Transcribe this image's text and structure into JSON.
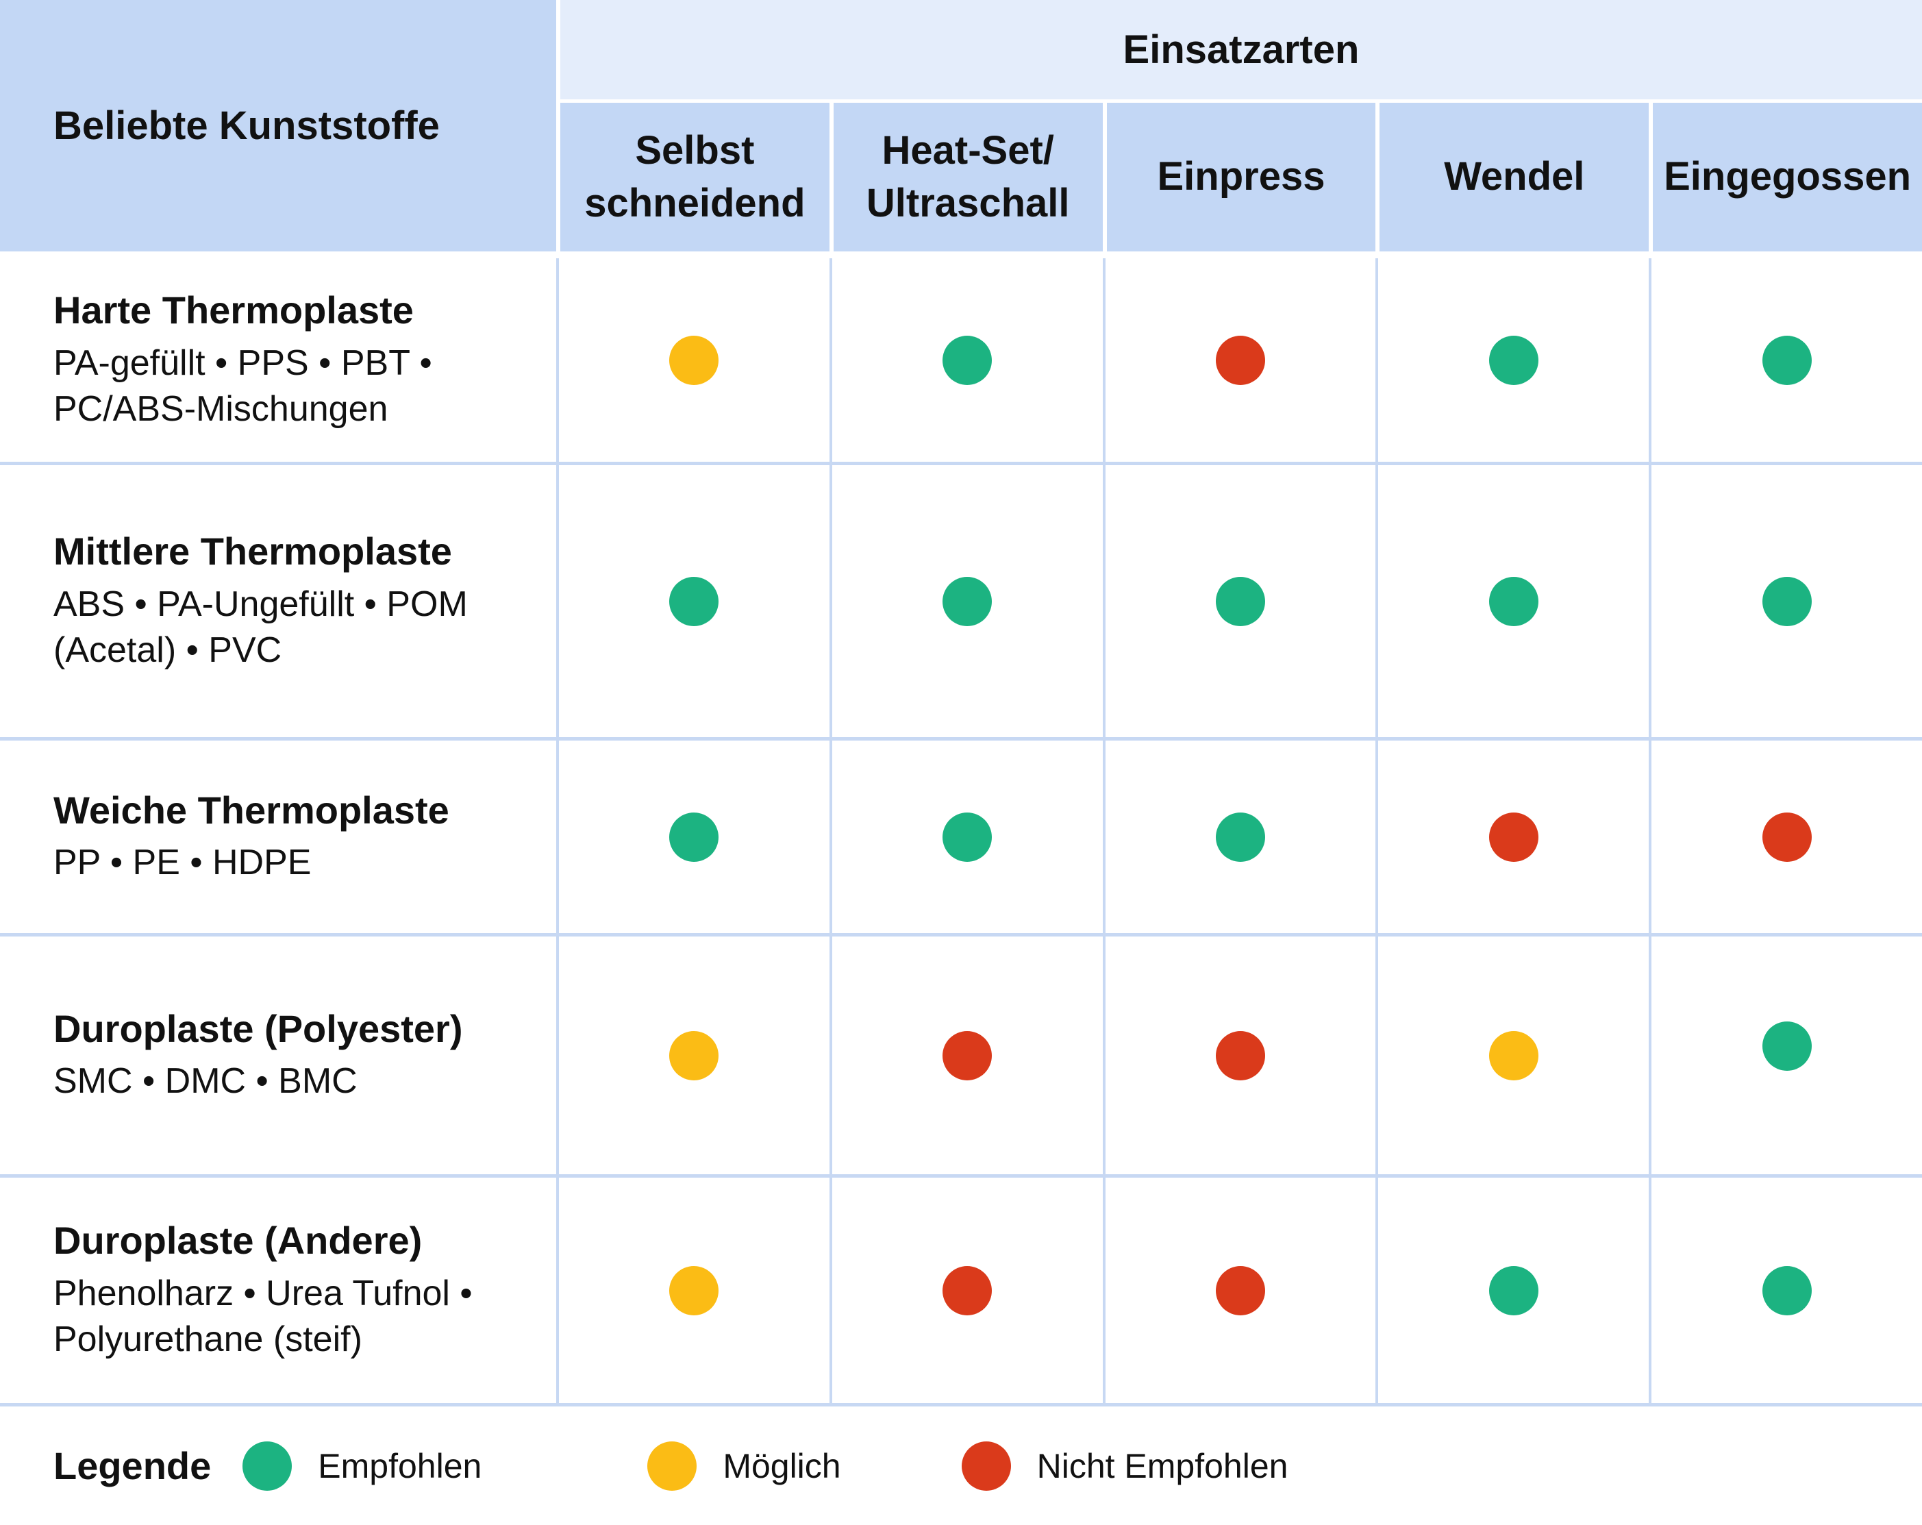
{
  "table": {
    "corner_header": "Beliebte Kunststoffe",
    "group_header": "Einsatzarten",
    "column_headers": [
      {
        "id": "selbst-schneidend",
        "lines": [
          "Selbst",
          "schneidend"
        ]
      },
      {
        "id": "heat-set-ultraschall",
        "lines": [
          "Heat-Set/",
          "Ultraschall"
        ]
      },
      {
        "id": "einpress",
        "lines": [
          "Einpress"
        ]
      },
      {
        "id": "wendel",
        "lines": [
          "Wendel"
        ]
      },
      {
        "id": "eingegossen",
        "lines": [
          "Eingegossen"
        ]
      }
    ],
    "rows": [
      {
        "title": "Harte Thermoplaste",
        "subtitle_lines": [
          "PA-gefüllt • PPS • PBT •",
          "PC/ABS-Mischungen"
        ],
        "ratings": [
          "moeglich",
          "empfohlen",
          "nicht_empfohlen",
          "empfohlen",
          "empfohlen"
        ]
      },
      {
        "title": "Mittlere Thermoplaste",
        "subtitle_lines": [
          "ABS • PA-Ungefüllt • POM",
          "(Acetal) • PVC"
        ],
        "ratings": [
          "empfohlen",
          "empfohlen",
          "empfohlen",
          "empfohlen",
          "empfohlen"
        ]
      },
      {
        "title": "Weiche Thermoplaste",
        "subtitle_lines": [
          "PP • PE • HDPE"
        ],
        "ratings": [
          "empfohlen",
          "empfohlen",
          "empfohlen",
          "nicht_empfohlen",
          "nicht_empfohlen"
        ]
      },
      {
        "title": "Duroplaste (Polyester)",
        "subtitle_lines": [
          "SMC • DMC • BMC"
        ],
        "ratings": [
          "moeglich",
          "nicht_empfohlen",
          "nicht_empfohlen",
          "moeglich",
          "empfohlen"
        ],
        "raised_dot_index": 4
      },
      {
        "title": "Duroplaste (Andere)",
        "subtitle_lines": [
          "Phenolharz • Urea Tufnol •",
          "Polyurethane (steif)"
        ],
        "ratings": [
          "moeglich",
          "nicht_empfohlen",
          "nicht_empfohlen",
          "empfohlen",
          "empfohlen"
        ]
      }
    ]
  },
  "legend": {
    "title": "Legende",
    "items": [
      {
        "status": "empfohlen",
        "label": "Empfohlen"
      },
      {
        "status": "moeglich",
        "label": "Möglich"
      },
      {
        "status": "nicht_empfohlen",
        "label": "Nicht Empfohlen"
      }
    ]
  },
  "status_colors": {
    "empfohlen": "#1cb381",
    "moeglich": "#fbbc15",
    "nicht_empfohlen": "#da3a1b"
  },
  "theme_colors": {
    "header_blue": "#c3d7f5",
    "group_band_blue": "#e4edfb",
    "grid_line_blue": "#c7d8f3",
    "text": "#111111"
  },
  "chart_data": {
    "type": "table",
    "title": "Einsatzarten",
    "row_header": "Beliebte Kunststoffe",
    "columns": [
      "Selbst schneidend",
      "Heat-Set/Ultraschall",
      "Einpress",
      "Wendel",
      "Eingegossen"
    ],
    "rows": [
      {
        "label": "Harte Thermoplaste",
        "materials": "PA-gefüllt • PPS • PBT • PC/ABS-Mischungen",
        "values": [
          "Möglich",
          "Empfohlen",
          "Nicht Empfohlen",
          "Empfohlen",
          "Empfohlen"
        ]
      },
      {
        "label": "Mittlere Thermoplaste",
        "materials": "ABS • PA-Ungefüllt • POM (Acetal) • PVC",
        "values": [
          "Empfohlen",
          "Empfohlen",
          "Empfohlen",
          "Empfohlen",
          "Empfohlen"
        ]
      },
      {
        "label": "Weiche Thermoplaste",
        "materials": "PP • PE • HDPE",
        "values": [
          "Empfohlen",
          "Empfohlen",
          "Empfohlen",
          "Nicht Empfohlen",
          "Nicht Empfohlen"
        ]
      },
      {
        "label": "Duroplaste (Polyester)",
        "materials": "SMC • DMC • BMC",
        "values": [
          "Möglich",
          "Nicht Empfohlen",
          "Nicht Empfohlen",
          "Möglich",
          "Empfohlen"
        ]
      },
      {
        "label": "Duroplaste (Andere)",
        "materials": "Phenolharz • Urea Tufnol • Polyurethane (steif)",
        "values": [
          "Möglich",
          "Nicht Empfohlen",
          "Nicht Empfohlen",
          "Empfohlen",
          "Empfohlen"
        ]
      }
    ],
    "legend": {
      "Empfohlen": "#1cb381",
      "Möglich": "#fbbc15",
      "Nicht Empfohlen": "#da3a1b"
    },
    "grid": true,
    "legend_position": "bottom-left"
  }
}
